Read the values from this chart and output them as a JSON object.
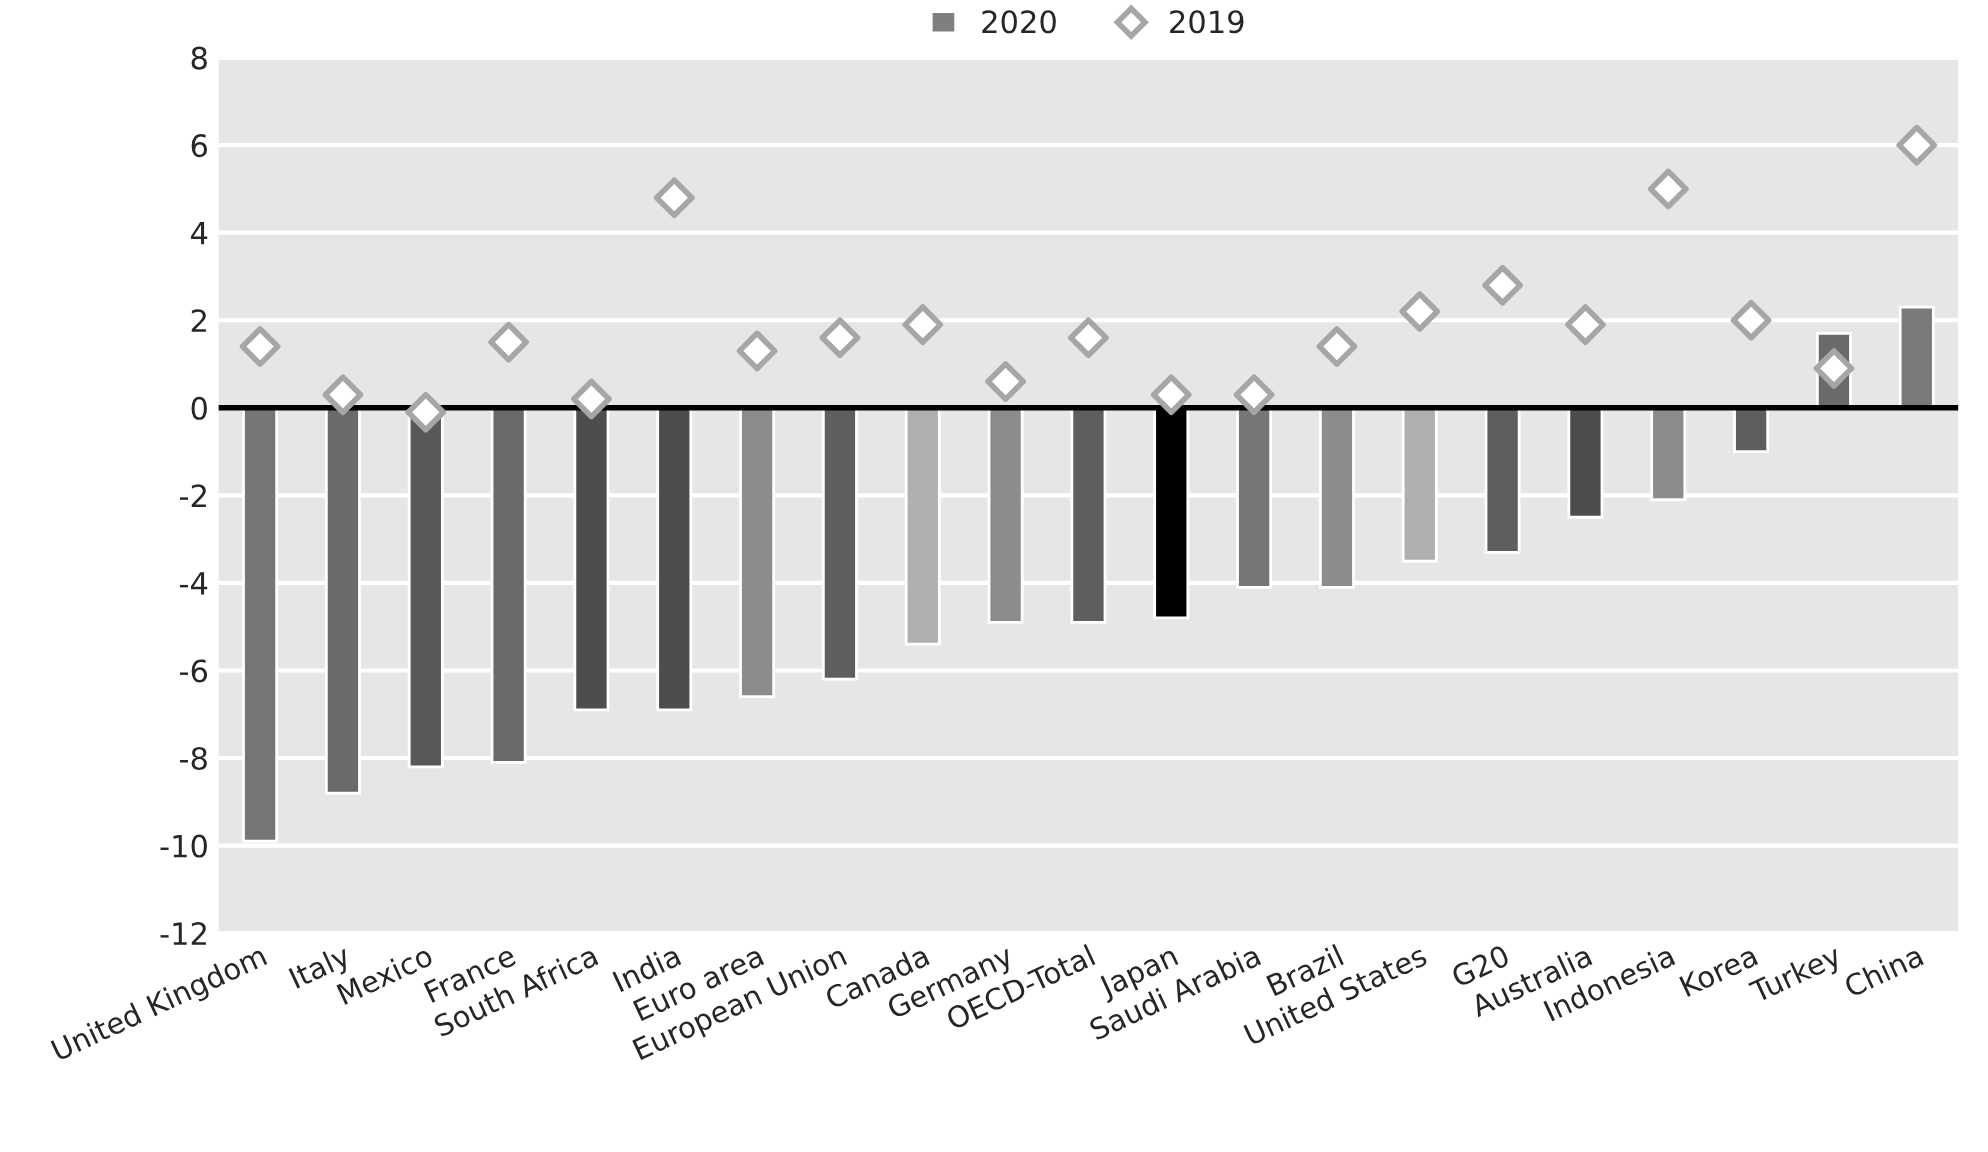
{
  "chart_data": {
    "type": "bar",
    "categories": [
      "United Kingdom",
      "Italy",
      "Mexico",
      "France",
      "South Africa",
      "India",
      "Euro area",
      "European Union",
      "Canada",
      "Germany",
      "OECD-Total",
      "Japan",
      "Saudi Arabia",
      "Brazil",
      "United States",
      "G20",
      "Australia",
      "Indonesia",
      "Korea",
      "Turkey",
      "China"
    ],
    "series": [
      {
        "name": "2020",
        "color": "#7f7f7f",
        "colors": [
          "#767676",
          "#6a6a6a",
          "#595959",
          "#6a6a6a",
          "#4d4d4d",
          "#4d4d4d",
          "#8c8c8c",
          "#5e5e5e",
          "#b0b0b0",
          "#8c8c8c",
          "#5e5e5e",
          "#000000",
          "#767676",
          "#8c8c8c",
          "#b0b0b0",
          "#5e5e5e",
          "#4d4d4d",
          "#8c8c8c",
          "#5e5e5e",
          "#6a6a6a",
          "#7a7a7a"
        ],
        "values": [
          -9.9,
          -8.8,
          -8.2,
          -8.1,
          -6.9,
          -6.9,
          -6.6,
          -6.2,
          -5.4,
          -4.9,
          -4.9,
          -4.8,
          -4.1,
          -4.1,
          -3.5,
          -3.3,
          -2.5,
          -2.1,
          -1.0,
          1.7,
          2.3
        ]
      },
      {
        "name": "2019",
        "type": "scatter",
        "marker": "diamond",
        "color": "#a6a6a6",
        "values": [
          1.4,
          0.3,
          -0.1,
          1.5,
          0.2,
          4.8,
          1.3,
          1.6,
          1.9,
          0.6,
          1.6,
          0.3,
          0.3,
          1.4,
          2.2,
          2.8,
          1.9,
          5.0,
          2.0,
          0.9,
          6.0
        ]
      }
    ],
    "ylim": [
      -12,
      8
    ],
    "yticks": [
      -12,
      -10,
      -8,
      -6,
      -4,
      -2,
      0,
      2,
      4,
      6,
      8
    ],
    "grid": "y",
    "legend": "top"
  }
}
